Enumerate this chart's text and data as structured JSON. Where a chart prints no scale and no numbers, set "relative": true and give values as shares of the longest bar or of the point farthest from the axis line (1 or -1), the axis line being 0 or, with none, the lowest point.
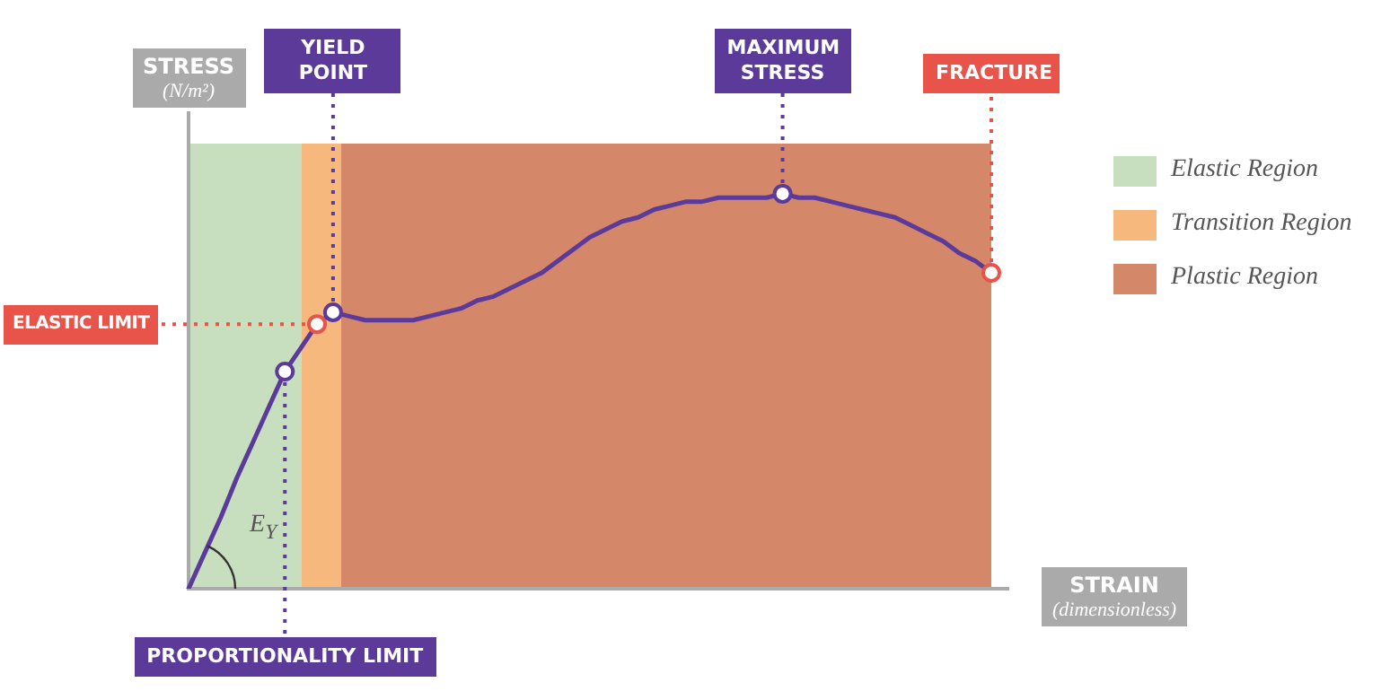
{
  "chart_data": {
    "type": "line",
    "relative": true,
    "xlabel": "STRAIN (dimensionless)",
    "ylabel": "STRESS (N/m²)",
    "categories": [
      null,
      null,
      null,
      null,
      null,
      null,
      null,
      null,
      null,
      null,
      null,
      null,
      null,
      null,
      null,
      null,
      null,
      null,
      null,
      null,
      null,
      null,
      null,
      null,
      null,
      null,
      null,
      null,
      null,
      null,
      null,
      null,
      null,
      null,
      null,
      null,
      null,
      null,
      null,
      null,
      null,
      null,
      null,
      null,
      null,
      null,
      null,
      null,
      null,
      null,
      null
    ],
    "series": [
      {
        "color": "#5b3a9a",
        "values": [
          0,
          0.09,
          0.18,
          0.28,
          0.37,
          0.46,
          0.55,
          0.61,
          0.67,
          0.7,
          0.69,
          0.68,
          0.68,
          0.68,
          0.68,
          0.69,
          0.7,
          0.71,
          0.73,
          0.74,
          0.76,
          0.78,
          0.8,
          0.83,
          0.86,
          0.89,
          0.91,
          0.93,
          0.94,
          0.96,
          0.97,
          0.98,
          0.98,
          0.99,
          0.99,
          0.99,
          0.99,
          1,
          0.99,
          0.99,
          0.98,
          0.97,
          0.96,
          0.95,
          0.94,
          0.92,
          0.9,
          0.88,
          0.85,
          0.83,
          0.8
        ],
        "colors": [
          null,
          null,
          null,
          null,
          null,
          null,
          "#5b3a9a",
          null,
          "#e8534a",
          "#5b3a9a",
          null,
          null,
          null,
          null,
          null,
          null,
          null,
          null,
          null,
          null,
          null,
          null,
          null,
          null,
          null,
          null,
          null,
          null,
          null,
          null,
          null,
          null,
          null,
          null,
          null,
          null,
          null,
          "#5b3a9a",
          null,
          null,
          null,
          null,
          null,
          null,
          null,
          null,
          null,
          null,
          null,
          null,
          "#e8534a"
        ]
      }
    ],
    "ref_lines": [
      {
        "axis": "y",
        "value": 0.67,
        "label": "ELASTIC LIMIT",
        "color": "#e8534a",
        "line_style": "dotted"
      }
    ],
    "annotations": [
      {
        "text": "PROPORTIONALITY LIMIT",
        "y": 0.55
      },
      {
        "text": "YIELD POINT",
        "y": 0.7
      },
      {
        "text": "MAXIMUM STRESS",
        "y": 1
      },
      {
        "text": "FRACTURE",
        "y": 0.8
      },
      "E$_{Y}$",
      "Elastic Region",
      "Transition Region",
      "Plastic Region"
    ]
  }
}
